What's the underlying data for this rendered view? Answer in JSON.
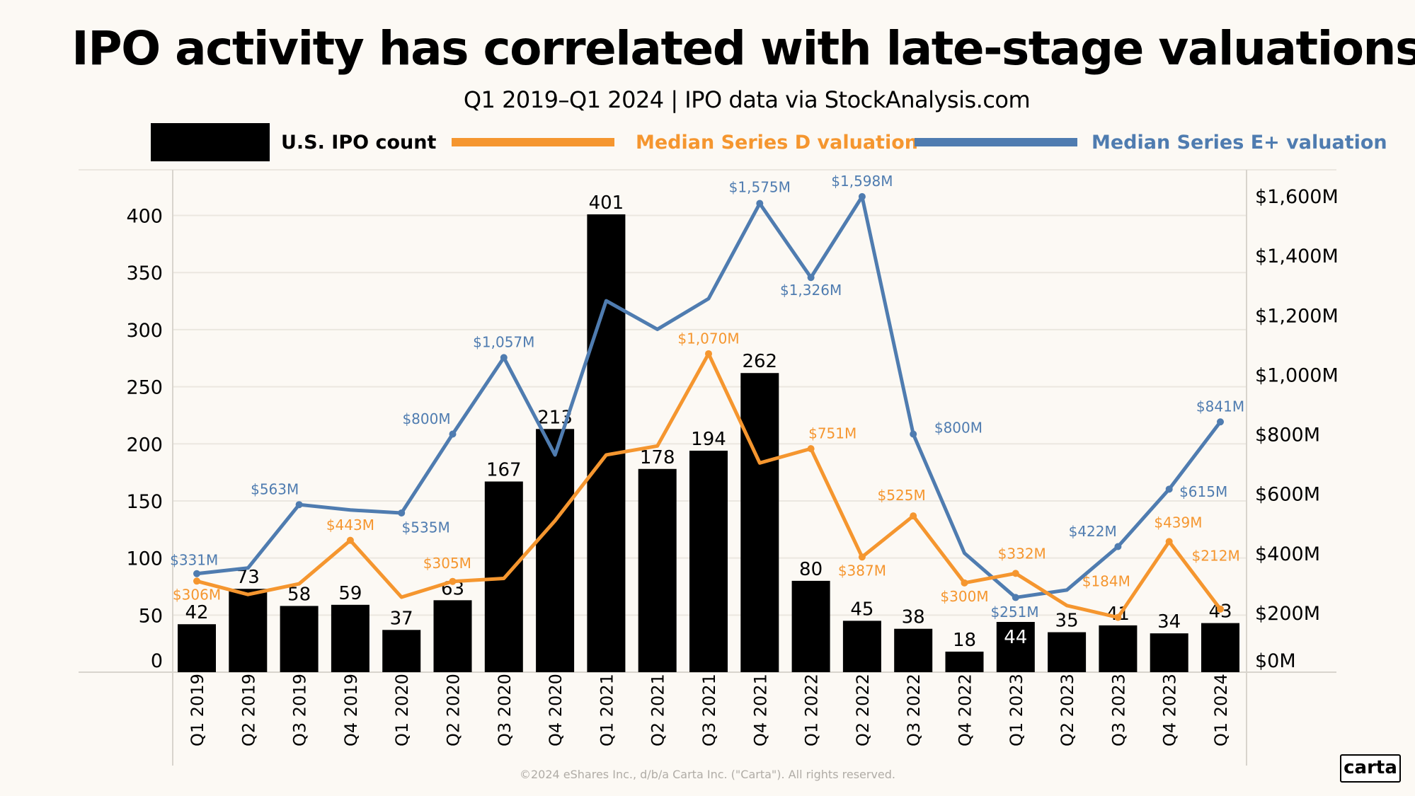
{
  "title": "IPO activity has correlated with late-stage valuations",
  "subtitle": "Q1 2019–Q1 2024 | IPO data via StockAnalysis.com",
  "footer": "©2024 eShares Inc., d/b/a Carta Inc. (\"Carta\"). All rights reserved.",
  "logo": "carta",
  "colors": {
    "bar": "#000000",
    "series_d": "#f5962f",
    "series_e": "#4f7cb0",
    "background": "#fcf9f4",
    "grid": "#ebe7e0"
  },
  "chart_data": {
    "type": "bar+line",
    "categories": [
      "Q1 2019",
      "Q2 2019",
      "Q3 2019",
      "Q4 2019",
      "Q1 2020",
      "Q2 2020",
      "Q3 2020",
      "Q4 2020",
      "Q1 2021",
      "Q2 2021",
      "Q3 2021",
      "Q4 2021",
      "Q1 2022",
      "Q2 2022",
      "Q3 2022",
      "Q4 2022",
      "Q1 2023",
      "Q2 2023",
      "Q3 2023",
      "Q4 2023",
      "Q1 2024"
    ],
    "legend_position": "top",
    "grid": true,
    "left_axis": {
      "ylim": [
        0,
        440
      ],
      "ticks": [
        0,
        50,
        100,
        150,
        200,
        250,
        300,
        350,
        400
      ],
      "tick_labels": [
        "0",
        "50",
        "100",
        "150",
        "200",
        "250",
        "300",
        "350",
        "400"
      ]
    },
    "right_axis": {
      "ylim": [
        0,
        1688
      ],
      "ticks": [
        0,
        200,
        400,
        600,
        800,
        1000,
        1200,
        1400,
        1600
      ],
      "tick_labels": [
        "$0M",
        "$200M",
        "$400M",
        "$600M",
        "$800M",
        "$1,000M",
        "$1,200M",
        "$1,400M",
        "$1,600M"
      ]
    },
    "series": [
      {
        "name": "U.S. IPO count",
        "type": "bar",
        "axis": "left",
        "values": [
          42,
          73,
          58,
          59,
          37,
          63,
          167,
          213,
          401,
          178,
          194,
          262,
          80,
          45,
          38,
          18,
          44,
          35,
          41,
          34,
          43
        ],
        "labels": [
          "42",
          "73",
          "58",
          "59",
          "37",
          "63",
          "167",
          "213",
          "401",
          "178",
          "194",
          "262",
          "80",
          "45",
          "38",
          "18",
          "44",
          "35",
          "41",
          "34",
          "43"
        ]
      },
      {
        "name": "Median Series D valuation",
        "type": "line",
        "axis": "right",
        "values": [
          306,
          261,
          297,
          443,
          252,
          305,
          315,
          509,
          730,
          760,
          1070,
          703,
          751,
          387,
          525,
          300,
          332,
          224,
          184,
          439,
          212
        ],
        "labels": [
          "$306M",
          null,
          null,
          "$443M",
          null,
          "$305M",
          null,
          null,
          null,
          null,
          "$1,070M",
          null,
          "$751M",
          "$387M",
          "$525M",
          "$300M",
          "$332M",
          null,
          "$184M",
          "$439M",
          "$212M"
        ]
      },
      {
        "name": "Median Series E+ valuation",
        "type": "line",
        "axis": "right",
        "values": [
          331,
          350,
          563,
          545,
          535,
          800,
          1057,
          730,
          1248,
          1152,
          1255,
          1575,
          1326,
          1598,
          800,
          400,
          251,
          276,
          422,
          615,
          841
        ],
        "labels": [
          "$331M",
          null,
          "$563M",
          null,
          "$535M",
          "$800M",
          "$1,057M",
          null,
          null,
          null,
          null,
          "$1,575M",
          "$1,326M",
          "$1,598M",
          "$800M",
          null,
          "$251M",
          null,
          "$422M",
          "$615M",
          "$841M"
        ]
      }
    ]
  }
}
